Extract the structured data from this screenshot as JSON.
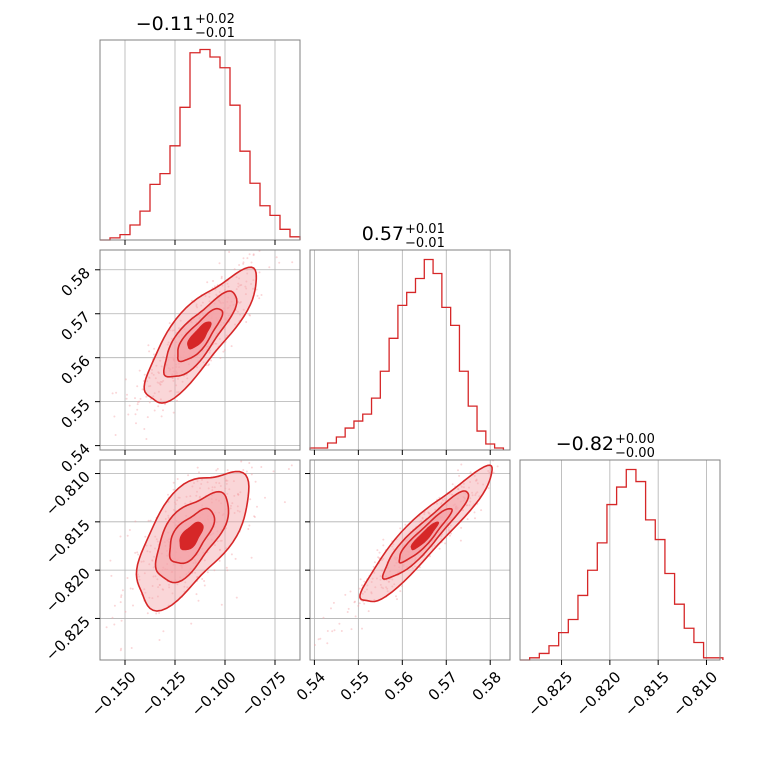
{
  "chart_data": {
    "type": "corner",
    "color": "#d62728",
    "fill_color": "#f4a3a8",
    "grid": true,
    "params": [
      {
        "title_main": "−0.11",
        "title_sup": "+0.02",
        "title_sub": "−0.01",
        "range": [
          -0.1625,
          -0.0625
        ],
        "ticks": [
          -0.15,
          -0.125,
          -0.1,
          -0.075
        ],
        "tick_labels": [
          "−0.150",
          "−0.125",
          "−0.100",
          "−0.075"
        ]
      },
      {
        "title_main": "0.57",
        "title_sup": "+0.01",
        "title_sub": "−0.01",
        "range": [
          0.539,
          0.5845
        ],
        "ticks": [
          0.54,
          0.55,
          0.56,
          0.57,
          0.58
        ],
        "tick_labels": [
          "0.54",
          "0.55",
          "0.56",
          "0.57",
          "0.58"
        ]
      },
      {
        "title_main": "−0.82",
        "title_sup": "+0.00",
        "title_sub": "−0.00",
        "range": [
          -0.8293,
          -0.8086
        ],
        "ticks": [
          -0.825,
          -0.82,
          -0.815,
          -0.81
        ],
        "tick_labels": [
          "−0.825",
          "−0.820",
          "−0.815",
          "−0.810"
        ]
      }
    ],
    "hist": [
      {
        "bins": [
          -0.1625,
          -0.1575,
          -0.1525,
          -0.1475,
          -0.1425,
          -0.1375,
          -0.1325,
          -0.1275,
          -0.1225,
          -0.1175,
          -0.1125,
          -0.1075,
          -0.1025,
          -0.0975,
          -0.0925,
          -0.0875,
          -0.0825,
          -0.0775,
          -0.0725,
          -0.0675,
          -0.0625
        ],
        "counts": [
          0,
          2,
          5,
          14,
          27,
          52,
          62,
          88,
          124,
          175,
          178,
          171,
          161,
          126,
          83,
          53,
          32,
          23,
          10,
          3
        ]
      },
      {
        "bins": [
          0.539,
          0.541,
          0.543,
          0.545,
          0.547,
          0.549,
          0.551,
          0.553,
          0.555,
          0.557,
          0.559,
          0.561,
          0.563,
          0.565,
          0.567,
          0.569,
          0.571,
          0.573,
          0.575,
          0.577,
          0.579,
          0.581,
          0.583
        ],
        "counts": [
          2,
          2,
          7,
          13,
          22,
          29,
          36,
          52,
          79,
          112,
          145,
          158,
          172,
          191,
          177,
          143,
          125,
          79,
          44,
          19,
          6,
          2
        ]
      },
      {
        "bins": [
          -0.8293,
          -0.8283,
          -0.8273,
          -0.8263,
          -0.8253,
          -0.8243,
          -0.8233,
          -0.8223,
          -0.8213,
          -0.8203,
          -0.8193,
          -0.8183,
          -0.8173,
          -0.8163,
          -0.8153,
          -0.8143,
          -0.8133,
          -0.8123,
          -0.8113,
          -0.8103,
          -0.8093,
          -0.8083
        ],
        "counts": [
          0,
          2,
          6,
          13,
          25,
          37,
          59,
          82,
          107,
          142,
          158,
          174,
          163,
          128,
          110,
          79,
          51,
          29,
          16,
          2,
          2
        ]
      }
    ],
    "scatter": [
      {
        "x": 0,
        "y": 1,
        "cx": -0.113,
        "cy": 0.565,
        "sx": 0.014,
        "sy": 0.0075,
        "rho": 0.82
      },
      {
        "x": 0,
        "y": 2,
        "cx": -0.117,
        "cy": -0.8165,
        "sx": 0.014,
        "sy": 0.0035,
        "rho": 0.62
      },
      {
        "x": 1,
        "y": 2,
        "cx": 0.565,
        "cy": -0.8165,
        "sx": 0.0075,
        "sy": 0.0035,
        "rho": 0.93
      }
    ],
    "contour_levels": [
      0.4,
      0.8,
      1.3,
      2.0
    ]
  }
}
